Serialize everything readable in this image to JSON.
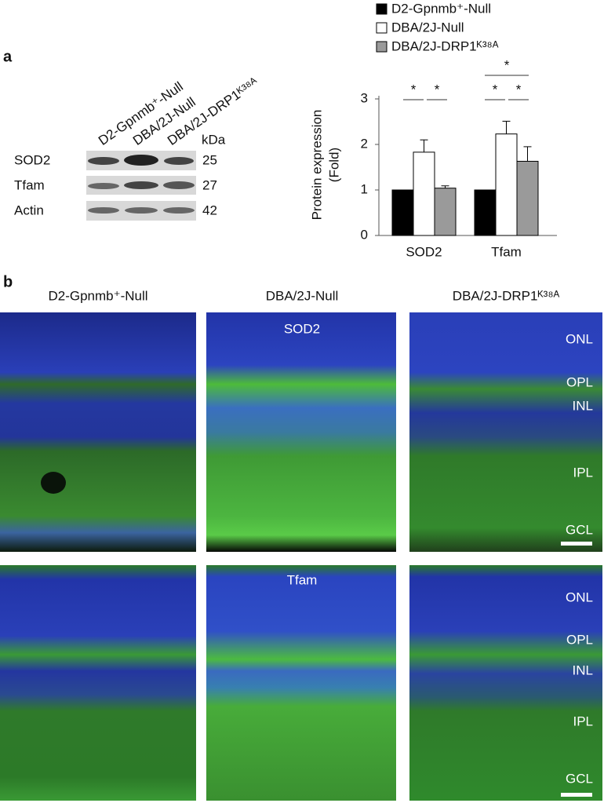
{
  "panel_a": {
    "label": "a",
    "blot": {
      "columns": [
        "D2-Gpnmb⁺-Null",
        "DBA/2J-Null",
        "DBA/2J-DRP1ᴷ³⁸ᴬ"
      ],
      "unit": "kDa",
      "rows": [
        {
          "protein": "SOD2",
          "kda": 25
        },
        {
          "protein": "Tfam",
          "kda": 27
        },
        {
          "protein": "Actin",
          "kda": 42
        }
      ]
    }
  },
  "chart_data": {
    "type": "bar",
    "categories": [
      "SOD2",
      "Tfam"
    ],
    "ylabel": [
      "Protein expression",
      "(Fold)"
    ],
    "ylim": [
      0,
      3
    ],
    "yticks": [
      0,
      1,
      2,
      3
    ],
    "legend": "top",
    "series": [
      {
        "name": "D2-Gpnmb⁺-Null",
        "color": "#000000",
        "values": [
          1,
          1
        ],
        "errors": [
          null,
          null
        ]
      },
      {
        "name": "DBA/2J-Null",
        "color": "#ffffff",
        "values": [
          1.83,
          2.23
        ],
        "errors": [
          0.27,
          0.28
        ]
      },
      {
        "name": "DBA/2J-DRP1ᴷ³⁸ᴬ",
        "color": "#9a9a9a",
        "values": [
          1.04,
          1.63
        ],
        "errors": [
          0.05,
          0.32
        ]
      }
    ],
    "significance": [
      {
        "text": "*"
      },
      {
        "text": "*"
      },
      {
        "text": "*"
      },
      {
        "text": "*"
      },
      {
        "text": "*"
      }
    ]
  },
  "panel_b": {
    "label": "b",
    "columns": [
      "D2-Gpnmb⁺-Null",
      "DBA/2J-Null",
      "DBA/2J-DRP1ᴷ³⁸ᴬ"
    ],
    "rows": [
      {
        "stain": "SOD2",
        "layers": [
          "ONL",
          "OPL",
          "INL",
          "IPL",
          "GCL"
        ]
      },
      {
        "stain": "Tfam",
        "layers": [
          "ONL",
          "OPL",
          "INL",
          "IPL",
          "GCL"
        ]
      }
    ]
  }
}
